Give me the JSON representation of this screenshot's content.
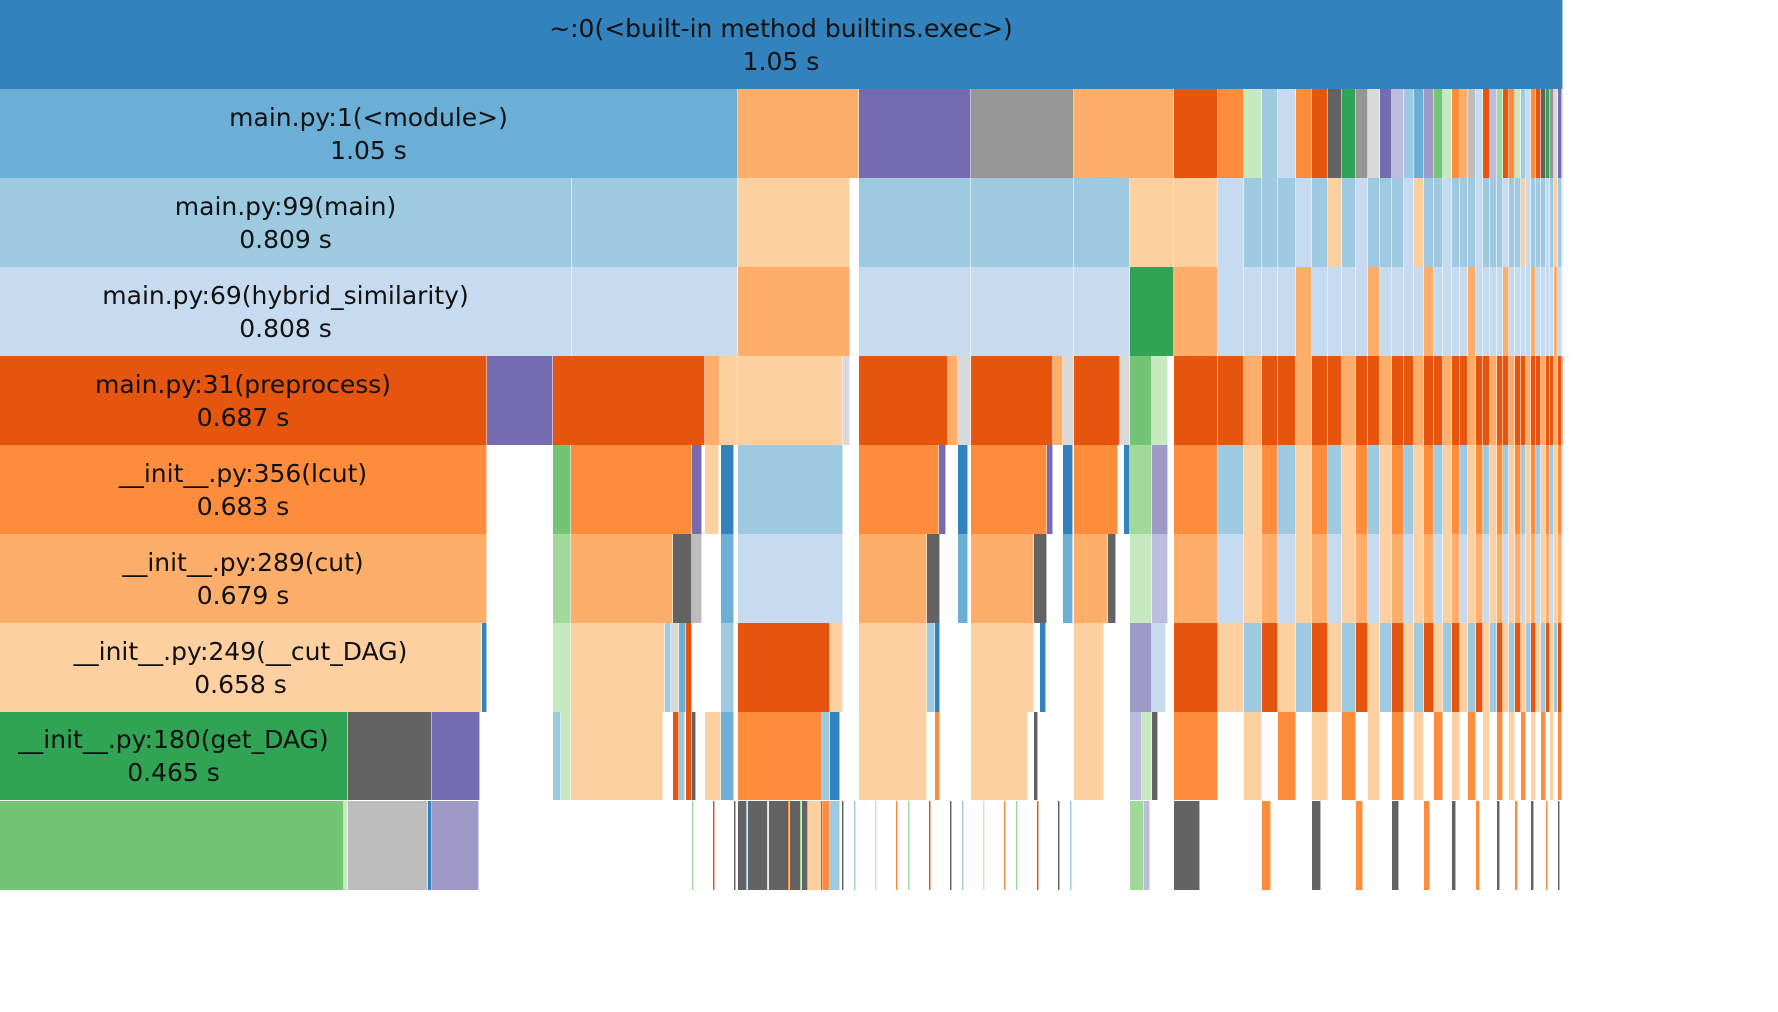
{
  "view": "icicle",
  "colors": {
    "blue_dark": "#3182bd",
    "blue_mid": "#6baed6",
    "blue_light": "#9ecae1",
    "blue_pale": "#c6dbef",
    "orange_dark": "#e6550d",
    "orange_mid": "#fd8d3c",
    "orange_light": "#fdae6b",
    "orange_pale": "#fdd0a2",
    "green_dark": "#31a354",
    "green_mid": "#74c476",
    "green_light": "#a1d99b",
    "green_pale": "#c7e9c0",
    "purple_dark": "#756bb1",
    "purple_mid": "#9e9ac8",
    "purple_light": "#bcbddc",
    "gray_dark": "#636363",
    "gray_mid": "#969696",
    "gray_light": "#bdbdbd",
    "gray_pale": "#d9d9d9"
  },
  "frames": [
    {
      "id": "root",
      "label": "~:0(<built-in method builtins.exec>)",
      "time": "1.05 s",
      "color": "blue_dark"
    },
    {
      "id": "module",
      "label": "main.py:1(<module>)",
      "time": "1.05 s",
      "color": "blue_mid"
    },
    {
      "id": "main",
      "label": "main.py:99(main)",
      "time": "0.809 s",
      "color": "blue_light"
    },
    {
      "id": "hybrid",
      "label": "main.py:69(hybrid_similarity)",
      "time": "0.808 s",
      "color": "blue_pale"
    },
    {
      "id": "preprocess",
      "label": "main.py:31(preprocess)",
      "time": "0.687 s",
      "color": "orange_dark"
    },
    {
      "id": "lcut",
      "label": "__init__.py:356(lcut)",
      "time": "0.683 s",
      "color": "orange_mid"
    },
    {
      "id": "cut",
      "label": "__init__.py:289(cut)",
      "time": "0.679 s",
      "color": "orange_light"
    },
    {
      "id": "cutdag",
      "label": "__init__.py:249(__cut_DAG)",
      "time": "0.658 s",
      "color": "orange_pale"
    },
    {
      "id": "getdag",
      "label": "__init__.py:180(get_DAG)",
      "time": "0.465 s",
      "color": "green_dark"
    }
  ]
}
